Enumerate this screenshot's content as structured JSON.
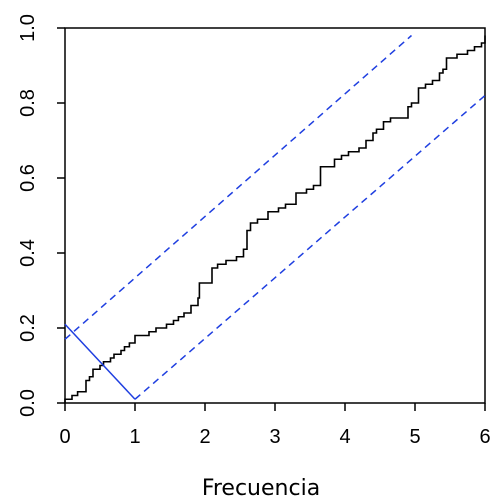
{
  "chart_data": {
    "type": "line",
    "xlabel": "Frecuencia",
    "ylabel": "",
    "xlim": [
      0,
      6
    ],
    "ylim": [
      0,
      1
    ],
    "x_ticks": [
      "0",
      "1",
      "2",
      "3",
      "4",
      "5",
      "6"
    ],
    "y_ticks": [
      "0.0",
      "0.2",
      "0.4",
      "0.6",
      "0.8",
      "1.0"
    ],
    "grid": false,
    "legend": "none",
    "series": [
      {
        "style": "step",
        "color": "#000000",
        "x": [
          0.0,
          0.1,
          0.18,
          0.3,
          0.35,
          0.4,
          0.5,
          0.55,
          0.65,
          0.7,
          0.8,
          0.85,
          0.92,
          1.0,
          1.2,
          1.3,
          1.45,
          1.55,
          1.62,
          1.7,
          1.8,
          1.9,
          1.92,
          2.0,
          2.1,
          2.18,
          2.3,
          2.45,
          2.55,
          2.6,
          2.65,
          2.75,
          2.9,
          3.05,
          3.15,
          3.3,
          3.45,
          3.55,
          3.65,
          3.85,
          3.95,
          4.05,
          4.2,
          4.3,
          4.4,
          4.45,
          4.55,
          4.65,
          4.9,
          4.95,
          5.05,
          5.15,
          5.25,
          5.35,
          5.4,
          5.45,
          5.6,
          5.75,
          5.85,
          5.95,
          6.0
        ],
        "y": [
          0.01,
          0.02,
          0.03,
          0.06,
          0.07,
          0.09,
          0.1,
          0.11,
          0.12,
          0.13,
          0.14,
          0.15,
          0.16,
          0.18,
          0.19,
          0.2,
          0.21,
          0.22,
          0.23,
          0.24,
          0.26,
          0.28,
          0.32,
          0.32,
          0.36,
          0.37,
          0.38,
          0.39,
          0.41,
          0.46,
          0.48,
          0.49,
          0.51,
          0.52,
          0.53,
          0.56,
          0.57,
          0.58,
          0.63,
          0.65,
          0.66,
          0.67,
          0.68,
          0.7,
          0.72,
          0.73,
          0.75,
          0.76,
          0.79,
          0.8,
          0.84,
          0.85,
          0.86,
          0.88,
          0.89,
          0.92,
          0.93,
          0.94,
          0.95,
          0.96,
          0.98
        ]
      },
      {
        "style": "dashed",
        "color": "#1f3fe0",
        "x": [
          0.0,
          4.95
        ],
        "y": [
          0.17,
          0.98
        ]
      },
      {
        "style": "dashed",
        "color": "#1f3fe0",
        "x": [
          1.0,
          6.0
        ],
        "y": [
          0.01,
          0.82
        ]
      },
      {
        "style": "solid",
        "color": "#1f3fe0",
        "x": [
          0.0,
          1.0
        ],
        "y": [
          0.21,
          0.01
        ]
      }
    ]
  }
}
